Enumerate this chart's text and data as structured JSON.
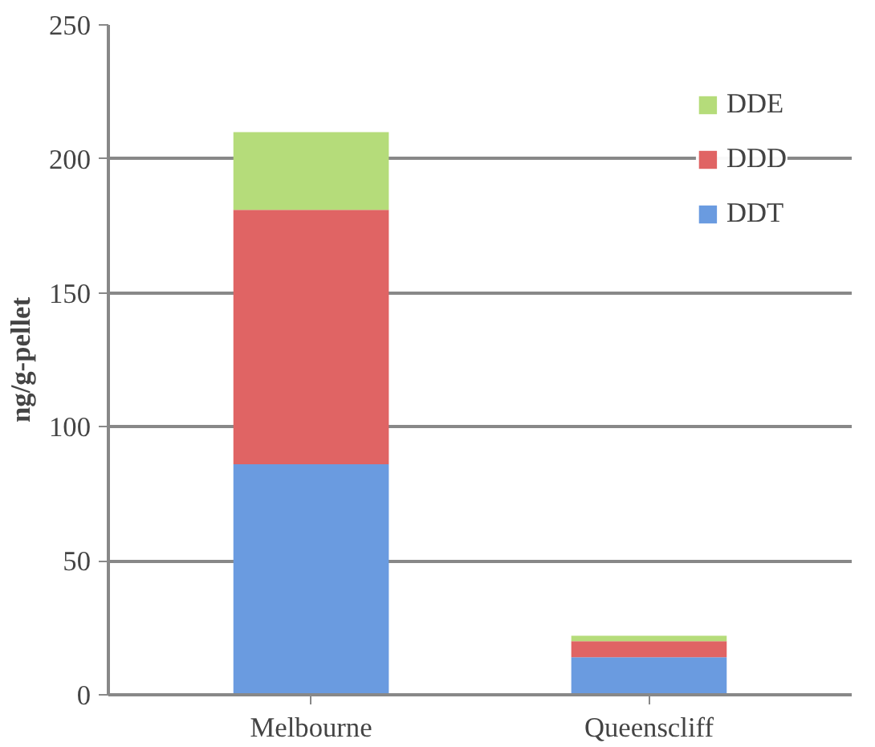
{
  "chart_data": {
    "type": "bar",
    "stacked": true,
    "ylabel": "ng/g-pellet",
    "categories": [
      "Melbourne",
      "Queenscliff"
    ],
    "series": [
      {
        "name": "DDT",
        "color": "#6a9be0",
        "values": [
          86,
          14
        ]
      },
      {
        "name": "DDD",
        "color": "#e06464",
        "values": [
          95,
          6
        ]
      },
      {
        "name": "DDE",
        "color": "#b5dc7a",
        "values": [
          29,
          2
        ]
      }
    ],
    "ylim": [
      0,
      250
    ],
    "yticks": [
      0,
      50,
      100,
      150,
      200,
      250
    ],
    "grid": "y",
    "legend": "top right"
  }
}
